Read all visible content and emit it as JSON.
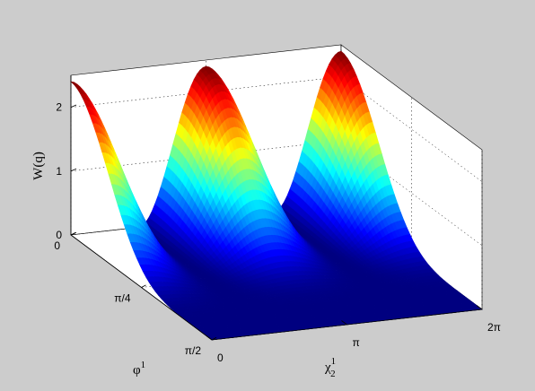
{
  "chart_data": {
    "type": "surface",
    "zlabel": "W(q)",
    "xlabel": "φ¹",
    "ylabel": "χ₂¹",
    "xlabel_parts": {
      "base": "φ",
      "sup": "1"
    },
    "ylabel_parts": {
      "base": "χ",
      "sup": "1",
      "sub": "2"
    },
    "x_range": [
      0,
      1.5708
    ],
    "x_ticks": [
      {
        "value": 0,
        "label": "0"
      },
      {
        "value": 0.7854,
        "label": "π/4"
      },
      {
        "value": 1.5708,
        "label": "π/2"
      }
    ],
    "y_range": [
      0,
      6.2832
    ],
    "y_ticks": [
      {
        "value": 0,
        "label": "0"
      },
      {
        "value": 3.1416,
        "label": "π"
      },
      {
        "value": 6.2832,
        "label": "2π"
      }
    ],
    "z_range": [
      0,
      2.5
    ],
    "z_ticks": [
      {
        "value": 0,
        "label": "0"
      },
      {
        "value": 1,
        "label": "1"
      },
      {
        "value": 2,
        "label": "2"
      }
    ],
    "peaks": [
      {
        "phi": 0,
        "chi": 0,
        "W": 2.4
      },
      {
        "phi": 0,
        "chi": 3.1416,
        "W": 2.4
      }
    ],
    "surface_function": "W = 2.4 · cos²(φ)^3 · cos²(χ)",
    "colormap": "jet",
    "grid": true,
    "box": true
  }
}
